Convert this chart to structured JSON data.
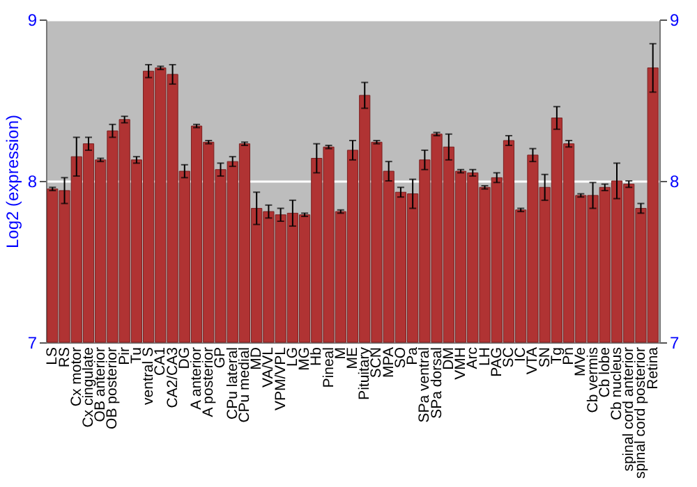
{
  "chart_data": {
    "type": "bar",
    "ylabel": "Log2 (expression)",
    "categories": [
      "LS",
      "RS",
      "Cx motor",
      "Cx cingulate",
      "OB anterior",
      "OB posterior",
      "Pir",
      "Tu",
      "ventral S",
      "CA1",
      "CA2/CA3",
      "DG",
      "A anterior",
      "A posterior",
      "GP",
      "CPu lateral",
      "CPu medial",
      "MD",
      "VA/VL",
      "VPM/VPL",
      "LG",
      "MG",
      "Hb",
      "Pineal",
      "M",
      "ME",
      "Pituitary",
      "SCN",
      "MPA",
      "SO",
      "Pa",
      "SPa ventral",
      "SPa dorsal",
      "DM",
      "VMH",
      "Arc",
      "LH",
      "PAG",
      "SC",
      "IC",
      "VTA",
      "SN",
      "Tg",
      "Pn",
      "MVe",
      "Cb vermis",
      "Cb lobe",
      "Cb nucleus",
      "spinal cord anterior",
      "spinal cord posterior",
      "Retina"
    ],
    "values": [
      7.95,
      7.94,
      8.15,
      8.23,
      8.13,
      8.31,
      8.38,
      8.13,
      8.68,
      8.7,
      8.66,
      8.06,
      8.34,
      8.24,
      8.07,
      8.12,
      8.23,
      7.83,
      7.81,
      7.79,
      7.8,
      7.79,
      8.14,
      8.21,
      7.81,
      8.19,
      8.53,
      8.24,
      8.06,
      7.93,
      7.92,
      8.13,
      8.29,
      8.21,
      8.06,
      8.05,
      7.96,
      8.02,
      8.25,
      7.82,
      8.16,
      7.96,
      8.39,
      8.23,
      7.91,
      7.91,
      7.96,
      8.0,
      7.98,
      7.83,
      8.7
    ],
    "errors": [
      0.01,
      0.08,
      0.12,
      0.04,
      0.01,
      0.04,
      0.02,
      0.02,
      0.04,
      0.01,
      0.06,
      0.04,
      0.01,
      0.01,
      0.04,
      0.03,
      0.01,
      0.1,
      0.04,
      0.04,
      0.08,
      0.01,
      0.09,
      0.01,
      0.01,
      0.06,
      0.08,
      0.01,
      0.06,
      0.03,
      0.09,
      0.06,
      0.01,
      0.08,
      0.01,
      0.02,
      0.01,
      0.03,
      0.03,
      0.01,
      0.04,
      0.08,
      0.07,
      0.02,
      0.01,
      0.08,
      0.02,
      0.11,
      0.02,
      0.03,
      0.15
    ],
    "color": "#b03333",
    "ylim": [
      7,
      9
    ],
    "yticks": [
      7,
      8,
      9
    ],
    "y2lim": [
      7,
      9
    ],
    "y2ticks": [
      7,
      8,
      9
    ],
    "grid": "y"
  }
}
